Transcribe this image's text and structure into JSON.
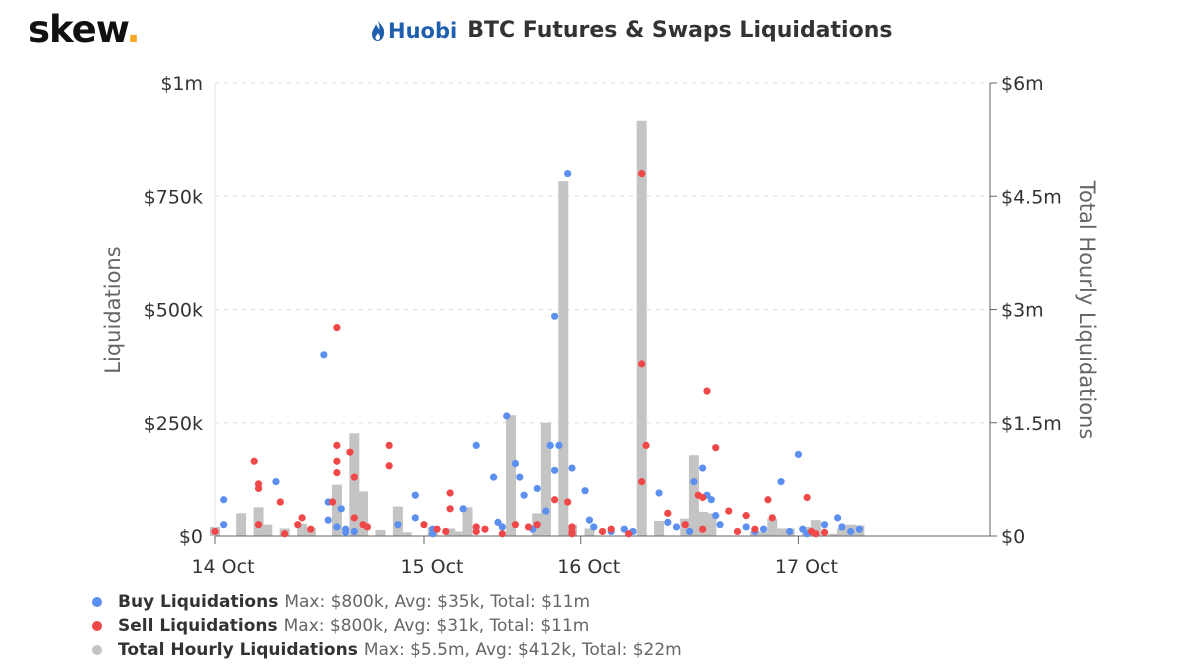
{
  "brand": {
    "name": "skew",
    "dot": "."
  },
  "header": {
    "exchange": "Huobi",
    "title": "BTC Futures & Swaps Liquidations"
  },
  "colors": {
    "buy": "#5b8ff0",
    "sell": "#f04848",
    "total": "#c4c4c4",
    "brand_dot": "#f5a623",
    "huobi": "#1f5fae"
  },
  "icons": {
    "huobi_logo": "flame-icon"
  },
  "legend": [
    {
      "name": "Buy Liquidations",
      "stats": "Max: $800k, Avg: $35k, Total: $11m"
    },
    {
      "name": "Sell Liquidations",
      "stats": "Max: $800k, Avg: $31k, Total: $11m"
    },
    {
      "name": "Total Hourly Liquidations",
      "stats": "Max: $5.5m, Avg: $412k, Total: $22m"
    }
  ],
  "chart_data": {
    "type": "scatter",
    "title": "BTC Futures & Swaps Liquidations",
    "ylabel": "Liquidations",
    "y2label": "Total Hourly Liquidations",
    "ylim": [
      0,
      1000000
    ],
    "y2lim": [
      0,
      6000000
    ],
    "yticks": [
      "$0",
      "$250k",
      "$500k",
      "$750k",
      "$1m"
    ],
    "y2ticks": [
      "$0",
      "$1.5m",
      "$3m",
      "$4.5m",
      "$6m"
    ],
    "xlim": [
      0,
      89
    ],
    "xticks": [
      {
        "hour": 0,
        "label": "14 Oct"
      },
      {
        "hour": 24,
        "label": "15 Oct"
      },
      {
        "hour": 42,
        "label": "16 Oct"
      },
      {
        "hour": 67,
        "label": "17 Oct"
      }
    ],
    "grid": true,
    "series": [
      {
        "name": "Total Hourly Liquidations",
        "type": "bar",
        "axis": "right",
        "x": [
          0,
          3,
          5,
          6,
          8,
          10,
          11,
          14,
          16,
          17,
          19,
          21,
          22,
          25,
          27,
          28,
          29,
          34,
          37,
          38,
          40,
          41,
          43,
          49,
          51,
          54,
          55,
          56,
          57,
          62,
          63,
          64,
          65,
          66,
          68,
          69,
          71,
          72,
          73,
          74
        ],
        "values": [
          120000,
          300000,
          380000,
          150000,
          100000,
          160000,
          110000,
          680000,
          1360000,
          590000,
          80000,
          390000,
          50000,
          120000,
          100000,
          60000,
          380000,
          1600000,
          300000,
          1500000,
          4700000,
          150000,
          100000,
          5500000,
          200000,
          230000,
          1070000,
          320000,
          300000,
          60000,
          50000,
          230000,
          100000,
          100000,
          120000,
          210000,
          30000,
          100000,
          150000,
          140000
        ]
      },
      {
        "name": "Buy Liquidations",
        "type": "scatter",
        "axis": "left",
        "x": [
          1,
          1,
          7,
          12.5,
          13,
          13,
          14,
          14.5,
          15,
          15,
          16,
          21,
          23,
          23,
          25,
          25,
          28.5,
          30,
          32,
          32.5,
          33,
          33.5,
          34.5,
          35,
          35.5,
          36.5,
          37,
          38,
          38.5,
          39,
          39,
          39.5,
          40.5,
          41,
          42.5,
          43,
          43.5,
          45.5,
          47,
          48,
          51,
          52,
          53,
          54.5,
          55,
          56,
          56.5,
          57,
          57.5,
          58,
          61,
          62,
          63,
          65,
          66,
          67,
          67.5,
          68,
          70,
          71.5,
          72,
          73,
          74
        ],
        "values": [
          80000,
          25000,
          120000,
          400000,
          75000,
          35000,
          20000,
          60000,
          15000,
          8000,
          10000,
          25000,
          90000,
          40000,
          5000,
          15000,
          60000,
          200000,
          130000,
          30000,
          20000,
          265000,
          160000,
          130000,
          90000,
          15000,
          105000,
          55000,
          200000,
          145000,
          485000,
          200000,
          800000,
          150000,
          100000,
          35000,
          20000,
          10000,
          15000,
          10000,
          95000,
          30000,
          20000,
          10000,
          120000,
          150000,
          90000,
          80000,
          45000,
          25000,
          20000,
          10000,
          15000,
          120000,
          10000,
          180000,
          15000,
          5000,
          25000,
          40000,
          20000,
          10000,
          15000
        ]
      },
      {
        "name": "Sell Liquidations",
        "type": "scatter",
        "axis": "left",
        "x": [
          0,
          4.5,
          5,
          5,
          5,
          7.5,
          8,
          9.5,
          10,
          11,
          13.5,
          14,
          14,
          14,
          14,
          15.5,
          16,
          16,
          17,
          17.5,
          20,
          20,
          24,
          25.5,
          26.5,
          27,
          27,
          30,
          30,
          31,
          33,
          34.5,
          36,
          37,
          39,
          40.5,
          41,
          41,
          41,
          44.5,
          45.5,
          47.5,
          49,
          49,
          49,
          49.5,
          52,
          54,
          55.5,
          56,
          56,
          56.5,
          57.5,
          59,
          60,
          61,
          62,
          63.5,
          64,
          68,
          68.5,
          69,
          70
        ],
        "values": [
          10000,
          165000,
          115000,
          105000,
          25000,
          75000,
          5000,
          25000,
          40000,
          15000,
          75000,
          460000,
          200000,
          165000,
          140000,
          185000,
          130000,
          40000,
          25000,
          20000,
          200000,
          155000,
          25000,
          15000,
          10000,
          95000,
          60000,
          20000,
          10000,
          15000,
          5000,
          25000,
          20000,
          25000,
          80000,
          75000,
          20000,
          10000,
          5000,
          10000,
          15000,
          5000,
          800000,
          380000,
          120000,
          200000,
          50000,
          25000,
          90000,
          85000,
          15000,
          320000,
          195000,
          55000,
          10000,
          45000,
          15000,
          80000,
          40000,
          85000,
          10000,
          5000,
          8000
        ]
      }
    ]
  }
}
